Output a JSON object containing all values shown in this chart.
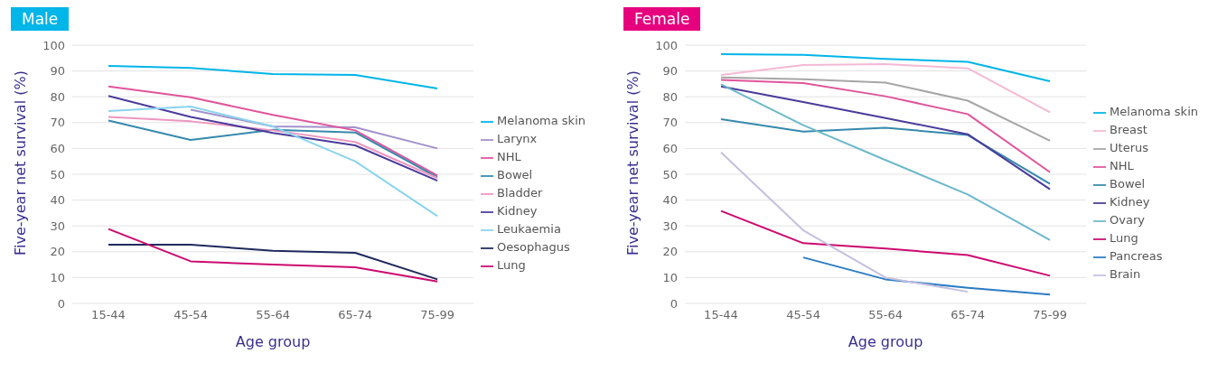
{
  "chart_data": [
    {
      "type": "line",
      "title": "Male",
      "xlabel": "Age group",
      "ylabel": "Five-year net survival (%)",
      "categories": [
        "15-44",
        "45-54",
        "55-64",
        "65-74",
        "75-99"
      ],
      "ylim": [
        0,
        100
      ],
      "yticks": [
        0,
        10,
        20,
        30,
        40,
        50,
        60,
        70,
        80,
        90,
        100
      ],
      "grid": "y",
      "legend": "right",
      "marker": "none",
      "line_style": "solid",
      "series": [
        {
          "name": "Melanoma skin",
          "color": "#00b5e8",
          "values": [
            92,
            91.2,
            88.8,
            88.5,
            83.2
          ]
        },
        {
          "name": "Larynx",
          "color": "#a391cc",
          "values": [
            null,
            75,
            68.5,
            68.2,
            60
          ]
        },
        {
          "name": "NHL",
          "color": "#e0559b",
          "values": [
            84,
            79.8,
            73,
            67,
            49.5
          ]
        },
        {
          "name": "Bowel",
          "color": "#3689ad",
          "values": [
            70.8,
            63.3,
            67.2,
            66.2,
            48.8
          ]
        },
        {
          "name": "Bladder",
          "color": "#ee96c0",
          "values": [
            72.2,
            70.5,
            67,
            62.5,
            48.5
          ]
        },
        {
          "name": "Kidney",
          "color": "#4a3c9a",
          "values": [
            80.3,
            72.2,
            66,
            61.2,
            47.5
          ]
        },
        {
          "name": "Leukaemia",
          "color": "#8ad4ee",
          "values": [
            74.5,
            76.2,
            68.5,
            55,
            33.8
          ]
        },
        {
          "name": "Oesophagus",
          "color": "#1f2a5c",
          "values": [
            22.7,
            22.7,
            20.4,
            19.6,
            9.3
          ]
        },
        {
          "name": "Lung",
          "color": "#cc0a6f",
          "values": [
            28.8,
            16.3,
            15,
            14,
            8.5
          ]
        }
      ]
    },
    {
      "type": "line",
      "title": "Female",
      "xlabel": "Age group",
      "ylabel": "Five-year net survival (%)",
      "categories": [
        "15-44",
        "45-54",
        "55-64",
        "65-74",
        "75-99"
      ],
      "ylim": [
        0,
        100
      ],
      "yticks": [
        0,
        10,
        20,
        30,
        40,
        50,
        60,
        70,
        80,
        90,
        100
      ],
      "grid": "y",
      "legend": "right",
      "marker": "none",
      "line_style": "solid",
      "series": [
        {
          "name": "Melanoma skin",
          "color": "#00b5e8",
          "values": [
            96.5,
            96.2,
            94.7,
            93.5,
            86
          ]
        },
        {
          "name": "Breast",
          "color": "#f5b9d4",
          "values": [
            88.5,
            92.3,
            92.7,
            91,
            74
          ]
        },
        {
          "name": "Uterus",
          "color": "#a6a6a6",
          "values": [
            87.5,
            86.8,
            85.5,
            78.5,
            63
          ]
        },
        {
          "name": "NHL",
          "color": "#e0559b",
          "values": [
            86.5,
            85.3,
            80.2,
            73.3,
            50.8
          ]
        },
        {
          "name": "Bowel",
          "color": "#3689ad",
          "values": [
            71.3,
            66.5,
            68,
            65.2,
            46.3
          ]
        },
        {
          "name": "Kidney",
          "color": "#4a3c9a",
          "values": [
            84,
            78,
            71.8,
            65.5,
            44.2
          ]
        },
        {
          "name": "Ovary",
          "color": "#6cb8cc",
          "values": [
            84.8,
            69,
            55.5,
            42.2,
            24.5
          ]
        },
        {
          "name": "Lung",
          "color": "#cc0a6f",
          "values": [
            35.8,
            23.3,
            21.2,
            18.7,
            10.7
          ]
        },
        {
          "name": "Pancreas",
          "color": "#2b7cc4",
          "values": [
            null,
            17.8,
            9.3,
            6,
            3.4
          ]
        },
        {
          "name": "Brain",
          "color": "#c6bfe0",
          "values": [
            58.5,
            28.3,
            10,
            4.5,
            null
          ]
        }
      ]
    }
  ]
}
